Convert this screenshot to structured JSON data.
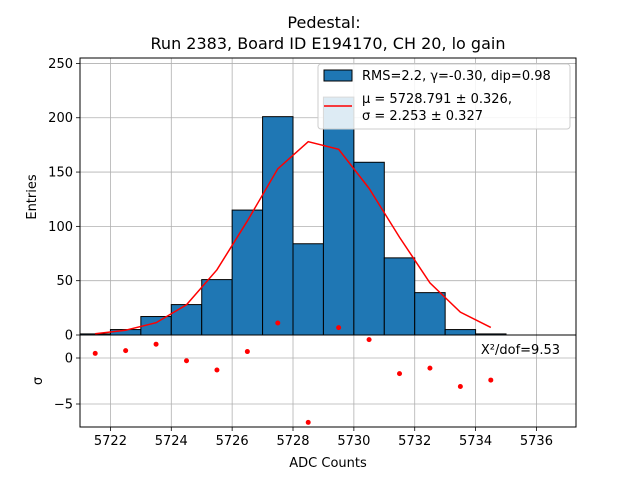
{
  "chart_data": {
    "type": "bar",
    "title_line1": "Pedestal:",
    "title_line2": "Run 2383, Board ID E194170, CH 20, lo gain",
    "ylabel_top": "Entries",
    "ylabel_bottom": "σ",
    "xlabel": "ADC Counts",
    "grid": true,
    "xlim": [
      5721.0,
      5737.3
    ],
    "ylim_top": [
      0,
      255
    ],
    "ylim_bottom": [
      -7.5,
      2.5
    ],
    "xticks": [
      5722,
      5724,
      5726,
      5728,
      5730,
      5732,
      5734,
      5736
    ],
    "yticks_top": [
      0,
      50,
      100,
      150,
      200,
      250
    ],
    "yticks_bottom": [
      -5,
      0
    ],
    "histogram": {
      "name": "RMS=2.2, γ=-0.30, dip=0.98",
      "color": "#1f77b4",
      "bin_edges": [
        5721,
        5722,
        5723,
        5724,
        5725,
        5726,
        5727,
        5728,
        5729,
        5730,
        5731,
        5732,
        5733,
        5734,
        5735
      ],
      "counts": [
        1,
        5,
        17,
        28,
        51,
        115,
        201,
        84,
        219,
        159,
        71,
        39,
        5,
        1
      ]
    },
    "fit": {
      "name_line1": "μ = 5728.791 ± 0.326,",
      "name_line2": "σ = 2.253 ± 0.327",
      "color": "#ff0000",
      "x": [
        5721.5,
        5722.5,
        5723.5,
        5724.5,
        5725.5,
        5726.5,
        5727.5,
        5728.5,
        5729.5,
        5730.5,
        5731.5,
        5732.5,
        5733.5,
        5734.5
      ],
      "y": [
        1.2,
        4.4,
        11.3,
        27.8,
        60,
        105,
        153,
        178,
        171,
        135,
        90,
        48,
        21,
        7
      ]
    },
    "residuals": {
      "color": "#ff0000",
      "x": [
        5721.5,
        5722.5,
        5723.5,
        5724.5,
        5725.5,
        5726.5,
        5727.5,
        5728.5,
        5729.5,
        5730.5,
        5731.5,
        5732.5,
        5733.5,
        5734.5
      ],
      "y": [
        0.5,
        0.8,
        1.5,
        -0.3,
        -1.3,
        0.7,
        3.8,
        -7.0,
        3.3,
        2.0,
        -1.7,
        -1.1,
        -3.1,
        -2.4
      ]
    },
    "annotation": "X²/dof=9.53"
  }
}
